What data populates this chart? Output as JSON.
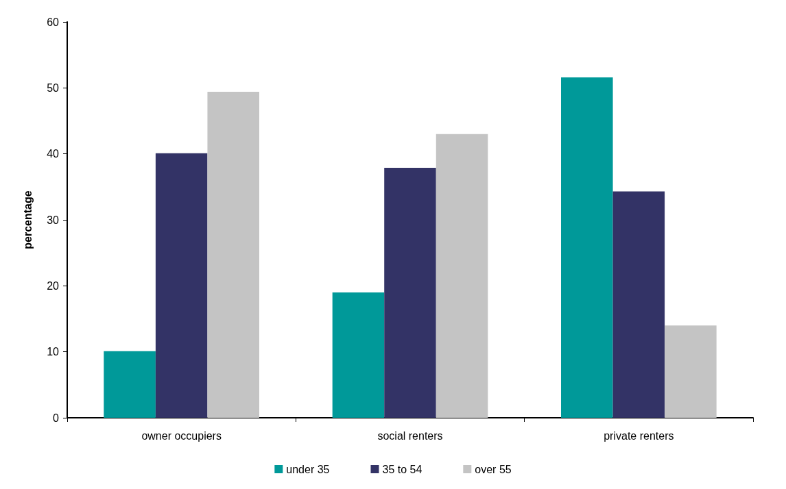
{
  "chart_data": {
    "type": "bar",
    "ylabel": "percentage",
    "categories": [
      "owner occupiers",
      "social renters",
      "private renters"
    ],
    "series": [
      {
        "name": "under 35",
        "color": "#009999",
        "values": [
          10.1,
          19.0,
          51.6
        ]
      },
      {
        "name": "35 to 54",
        "color": "#333366",
        "values": [
          40.1,
          37.9,
          34.3
        ]
      },
      {
        "name": "over 55",
        "color": "#c4c4c4",
        "values": [
          49.4,
          43.0,
          14.0
        ]
      }
    ],
    "ylim": [
      0,
      60
    ],
    "yticks": [
      0,
      10,
      20,
      30,
      40,
      50,
      60
    ],
    "grid": false,
    "legend": "bottom"
  }
}
